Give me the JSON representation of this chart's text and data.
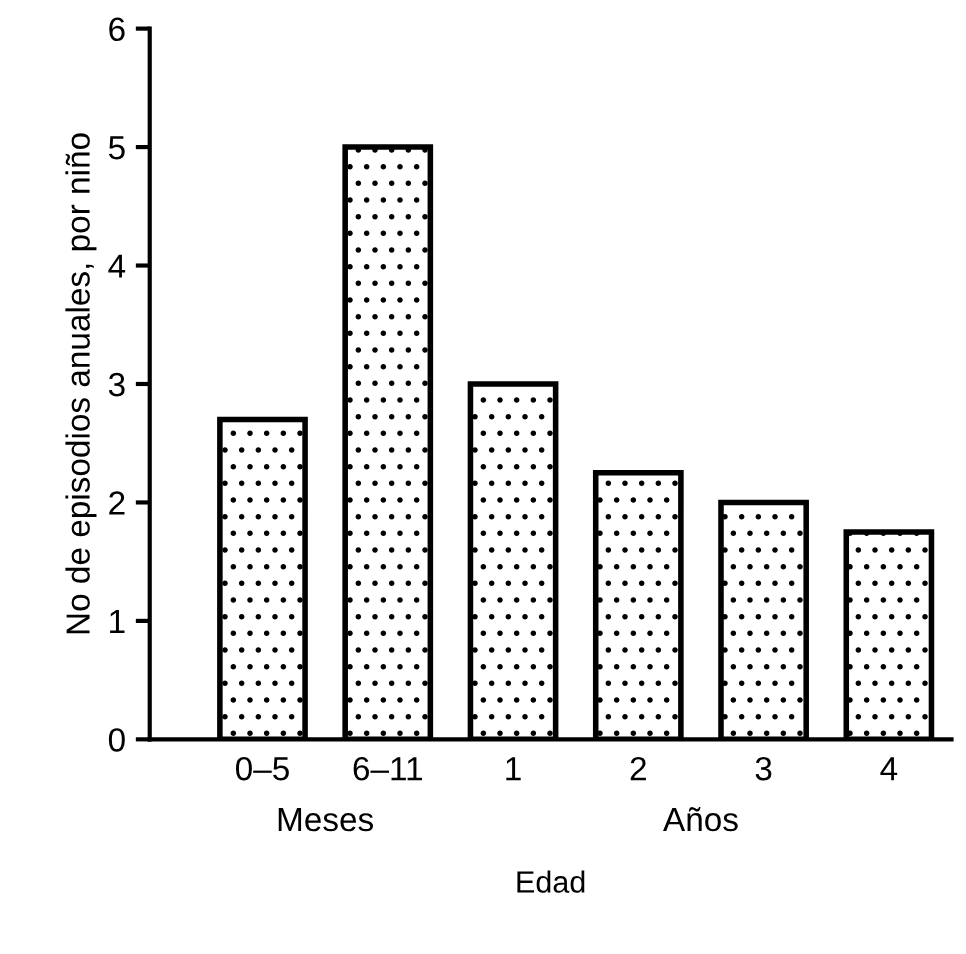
{
  "chart_data": {
    "type": "bar",
    "xlabel": "Edad",
    "ylabel": "No de episodios anuales, por niño",
    "categories": [
      "0–5",
      "6–11",
      "1",
      "2",
      "3",
      "4"
    ],
    "values": [
      2.7,
      5.0,
      3.0,
      2.25,
      2.0,
      1.75
    ],
    "color": "#000000",
    "ylim": [
      0,
      6
    ],
    "yticks": [
      0,
      1,
      2,
      3,
      4,
      5,
      6
    ],
    "grid": false,
    "legend": false,
    "annotations": [
      "Meses",
      "Años"
    ]
  }
}
